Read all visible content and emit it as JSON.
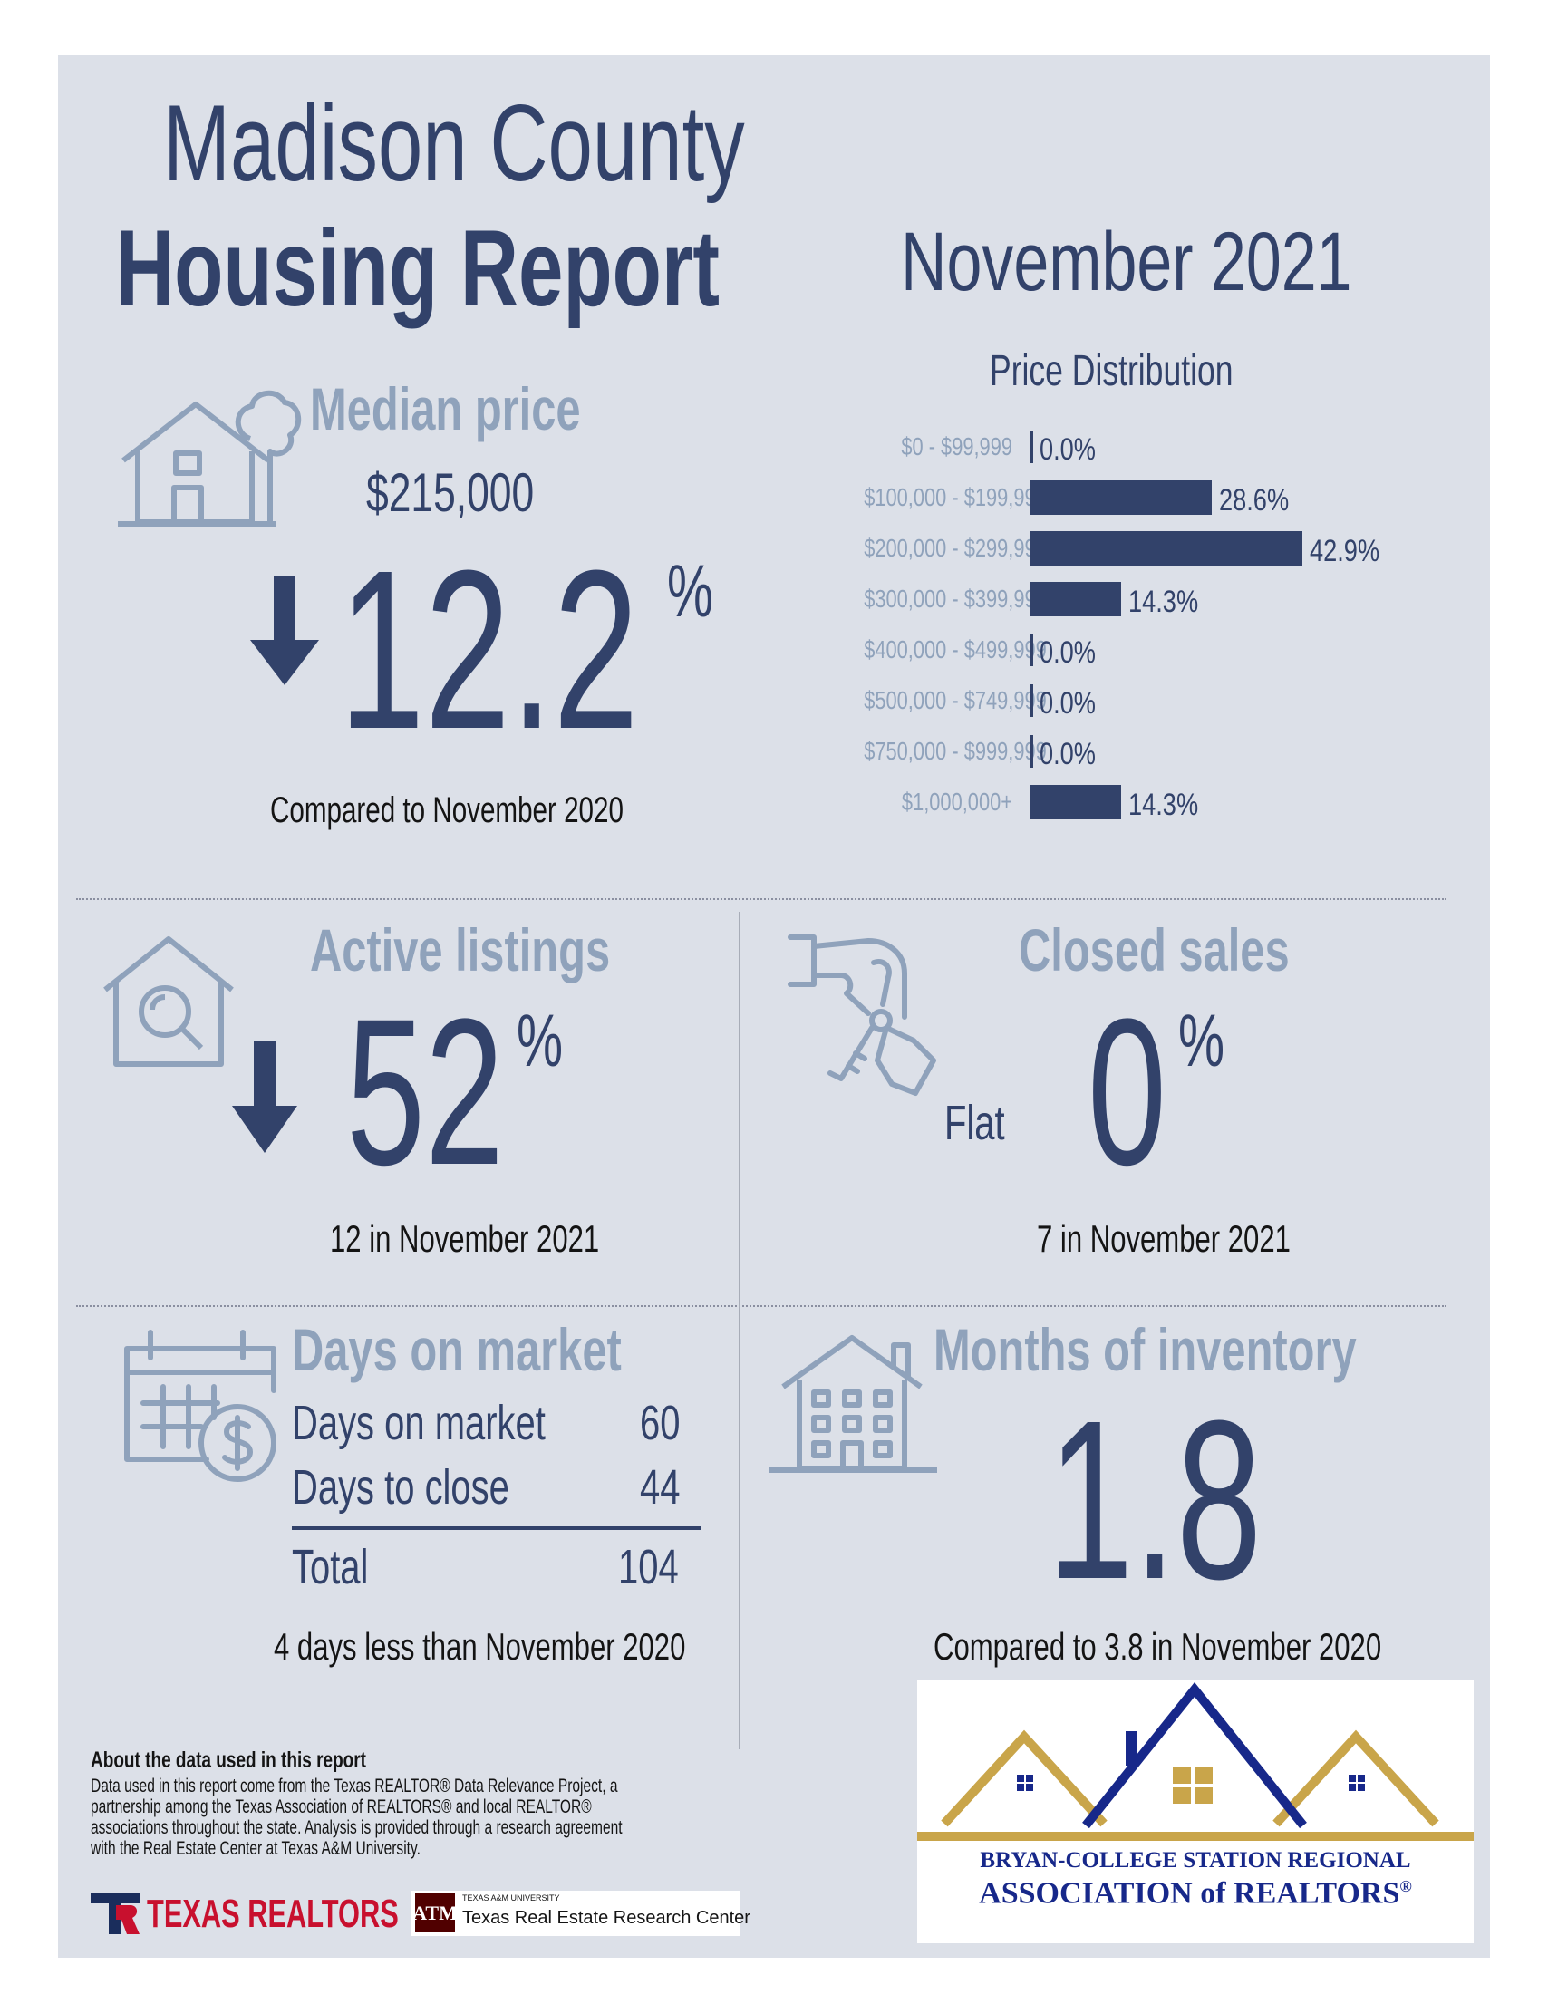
{
  "header": {
    "county": "Madison County",
    "report": "Housing Report",
    "period": "November 2021"
  },
  "median_price": {
    "title": "Median price",
    "value": "$215,000",
    "direction": "down",
    "change": "12.2",
    "percent_sign": "%",
    "comparison": "Compared to November 2020"
  },
  "price_distribution": {
    "title": "Price Distribution",
    "rows": [
      {
        "label": "$0 - $99,999",
        "value": "0.0%",
        "pct": 0.0
      },
      {
        "label": "$100,000 - $199,999",
        "value": "28.6%",
        "pct": 28.6
      },
      {
        "label": "$200,000 - $299,999",
        "value": "42.9%",
        "pct": 42.9
      },
      {
        "label": "$300,000 - $399,999",
        "value": "14.3%",
        "pct": 14.3
      },
      {
        "label": "$400,000 - $499,999",
        "value": "0.0%",
        "pct": 0.0
      },
      {
        "label": "$500,000 - $749,999",
        "value": "0.0%",
        "pct": 0.0
      },
      {
        "label": "$750,000 - $999,999",
        "value": "0.0%",
        "pct": 0.0
      },
      {
        "label": "$1,000,000+",
        "value": "14.3%",
        "pct": 14.3
      }
    ]
  },
  "active_listings": {
    "title": "Active listings",
    "direction": "down",
    "change": "52",
    "percent_sign": "%",
    "note": "12 in November 2021"
  },
  "closed_sales": {
    "title": "Closed sales",
    "trend": "Flat",
    "change": "0",
    "percent_sign": "%",
    "note": "7 in November 2021"
  },
  "days_on_market": {
    "title": "Days on market",
    "rows": [
      {
        "label": "Days on market",
        "value": "60"
      },
      {
        "label": "Days to close",
        "value": "44"
      }
    ],
    "total_label": "Total",
    "total_value": "104",
    "note": "4 days less than November 2020"
  },
  "months_inventory": {
    "title": "Months of inventory",
    "value": "1.8",
    "note": "Compared to 3.8 in November 2020"
  },
  "about": {
    "title": "About the data used in this report",
    "lines": [
      "Data used in this report come from the Texas REALTOR® Data Relevance Project, a",
      "partnership among the Texas Association of REALTORS® and local REALTOR®",
      "associations throughout the state. Analysis is provided through a research agreement",
      "with the Real Estate Center at Texas A&M University."
    ]
  },
  "logos": {
    "texas_realtors": "TEXAS REALTORS",
    "tamu_small": "TEXAS A&M UNIVERSITY",
    "tamu_center": "Texas Real Estate Research Center",
    "association_line1": "BRYAN-COLLEGE STATION REGIONAL",
    "association_line2": "ASSOCIATION of REALTORS",
    "registered": "®"
  },
  "colors": {
    "navy": "#32426a",
    "steel": "#8fa2bb",
    "panel": "#dce0e8",
    "gold": "#c9a54a",
    "brand_blue": "#17288a"
  }
}
